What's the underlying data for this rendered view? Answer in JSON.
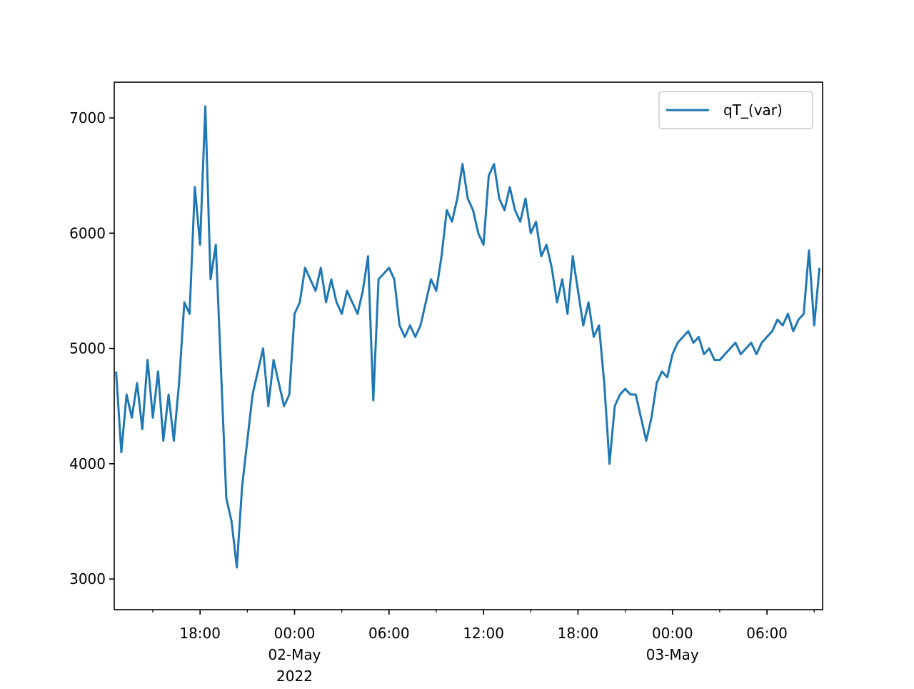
{
  "chart_data": {
    "type": "line",
    "x": [
      "2022-05-01 12:40",
      "2022-05-01 13:00",
      "2022-05-01 13:20",
      "2022-05-01 13:40",
      "2022-05-01 14:00",
      "2022-05-01 14:20",
      "2022-05-01 14:40",
      "2022-05-01 15:00",
      "2022-05-01 15:20",
      "2022-05-01 15:40",
      "2022-05-01 16:00",
      "2022-05-01 16:20",
      "2022-05-01 16:40",
      "2022-05-01 17:00",
      "2022-05-01 17:20",
      "2022-05-01 17:40",
      "2022-05-01 18:00",
      "2022-05-01 18:20",
      "2022-05-01 18:40",
      "2022-05-01 19:00",
      "2022-05-01 19:20",
      "2022-05-01 19:40",
      "2022-05-01 20:00",
      "2022-05-01 20:20",
      "2022-05-01 20:40",
      "2022-05-01 21:00",
      "2022-05-01 21:20",
      "2022-05-01 21:40",
      "2022-05-01 22:00",
      "2022-05-01 22:20",
      "2022-05-01 22:40",
      "2022-05-01 23:00",
      "2022-05-01 23:20",
      "2022-05-01 23:40",
      "2022-05-02 00:00",
      "2022-05-02 00:20",
      "2022-05-02 00:40",
      "2022-05-02 01:00",
      "2022-05-02 01:20",
      "2022-05-02 01:40",
      "2022-05-02 02:00",
      "2022-05-02 02:20",
      "2022-05-02 02:40",
      "2022-05-02 03:00",
      "2022-05-02 03:20",
      "2022-05-02 03:40",
      "2022-05-02 04:00",
      "2022-05-02 04:20",
      "2022-05-02 04:40",
      "2022-05-02 05:00",
      "2022-05-02 05:20",
      "2022-05-02 05:40",
      "2022-05-02 06:00",
      "2022-05-02 06:20",
      "2022-05-02 06:40",
      "2022-05-02 07:00",
      "2022-05-02 07:20",
      "2022-05-02 07:40",
      "2022-05-02 08:00",
      "2022-05-02 08:20",
      "2022-05-02 08:40",
      "2022-05-02 09:00",
      "2022-05-02 09:20",
      "2022-05-02 09:40",
      "2022-05-02 10:00",
      "2022-05-02 10:20",
      "2022-05-02 10:40",
      "2022-05-02 11:00",
      "2022-05-02 11:20",
      "2022-05-02 11:40",
      "2022-05-02 12:00",
      "2022-05-02 12:20",
      "2022-05-02 12:40",
      "2022-05-02 13:00",
      "2022-05-02 13:20",
      "2022-05-02 13:40",
      "2022-05-02 14:00",
      "2022-05-02 14:20",
      "2022-05-02 14:40",
      "2022-05-02 15:00",
      "2022-05-02 15:20",
      "2022-05-02 15:40",
      "2022-05-02 16:00",
      "2022-05-02 16:20",
      "2022-05-02 16:40",
      "2022-05-02 17:00",
      "2022-05-02 17:20",
      "2022-05-02 17:40",
      "2022-05-02 18:00",
      "2022-05-02 18:20",
      "2022-05-02 18:40",
      "2022-05-02 19:00",
      "2022-05-02 19:20",
      "2022-05-02 19:40",
      "2022-05-02 20:00",
      "2022-05-02 20:20",
      "2022-05-02 20:40",
      "2022-05-02 21:00",
      "2022-05-02 21:20",
      "2022-05-02 21:40",
      "2022-05-02 22:00",
      "2022-05-02 22:20",
      "2022-05-02 22:40",
      "2022-05-02 23:00",
      "2022-05-02 23:20",
      "2022-05-02 23:40",
      "2022-05-03 00:00",
      "2022-05-03 00:20",
      "2022-05-03 00:40",
      "2022-05-03 01:00",
      "2022-05-03 01:20",
      "2022-05-03 01:40",
      "2022-05-03 02:00",
      "2022-05-03 02:20",
      "2022-05-03 02:40",
      "2022-05-03 03:00",
      "2022-05-03 03:20",
      "2022-05-03 03:40",
      "2022-05-03 04:00",
      "2022-05-03 04:20",
      "2022-05-03 04:40",
      "2022-05-03 05:00",
      "2022-05-03 05:20",
      "2022-05-03 05:40",
      "2022-05-03 06:00",
      "2022-05-03 06:20",
      "2022-05-03 06:40",
      "2022-05-03 07:00",
      "2022-05-03 07:20",
      "2022-05-03 07:40",
      "2022-05-03 08:00",
      "2022-05-03 08:20",
      "2022-05-03 08:40",
      "2022-05-03 09:00",
      "2022-05-03 09:20"
    ],
    "series": [
      {
        "name": "qT_(var)",
        "color": "#1f77b4",
        "values": [
          4800,
          4100,
          4600,
          4400,
          4700,
          4300,
          4900,
          4400,
          4800,
          4200,
          4600,
          4200,
          4700,
          5400,
          5300,
          6400,
          5900,
          7100,
          5600,
          5900,
          4800,
          3700,
          3500,
          3100,
          3800,
          4200,
          4600,
          4800,
          5000,
          4500,
          4900,
          4700,
          4500,
          4600,
          5300,
          5400,
          5700,
          5600,
          5500,
          5700,
          5400,
          5600,
          5400,
          5300,
          5500,
          5400,
          5300,
          5500,
          5800,
          4550,
          5600,
          5650,
          5700,
          5600,
          5200,
          5100,
          5200,
          5100,
          5200,
          5400,
          5600,
          5500,
          5800,
          6200,
          6100,
          6300,
          6600,
          6300,
          6200,
          6000,
          5900,
          6500,
          6600,
          6300,
          6200,
          6400,
          6200,
          6100,
          6300,
          6000,
          6100,
          5800,
          5900,
          5700,
          5400,
          5600,
          5300,
          5800,
          5500,
          5200,
          5400,
          5100,
          5200,
          4700,
          4000,
          4500,
          4600,
          4650,
          4600,
          4600,
          4400,
          4200,
          4400,
          4700,
          4800,
          4750,
          4950,
          5050,
          5100,
          5150,
          5050,
          5100,
          4950,
          5000,
          4900,
          4900,
          4950,
          5000,
          5050,
          4950,
          5000,
          5050,
          4950,
          5050,
          5100,
          5150,
          5250,
          5200,
          5300,
          5150,
          5250,
          5300,
          5850,
          5200,
          5700
        ]
      }
    ],
    "xlim": [
      "2022-05-01 12:33",
      "2022-05-03 09:32"
    ],
    "xticks": [
      {
        "value": "2022-05-01 18:00",
        "label": "18:00"
      },
      {
        "value": "2022-05-02 00:00",
        "label": "00:00\n02-May\n2022"
      },
      {
        "value": "2022-05-02 06:00",
        "label": "06:00"
      },
      {
        "value": "2022-05-02 12:00",
        "label": "12:00"
      },
      {
        "value": "2022-05-02 18:00",
        "label": "18:00"
      },
      {
        "value": "2022-05-03 00:00",
        "label": "00:00\n03-May"
      },
      {
        "value": "2022-05-03 06:00",
        "label": "06:00"
      }
    ],
    "ylim": [
      2734,
      7310
    ],
    "yticks": [
      3000,
      4000,
      5000,
      6000,
      7000
    ],
    "legend": "upper right"
  }
}
